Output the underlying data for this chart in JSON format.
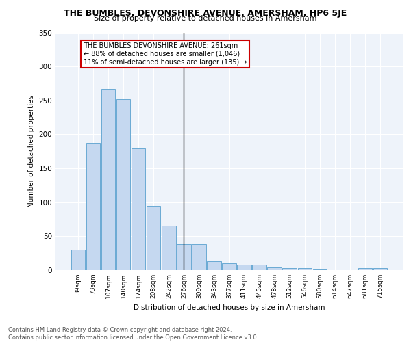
{
  "title": "THE BUMBLES, DEVONSHIRE AVENUE, AMERSHAM, HP6 5JE",
  "subtitle": "Size of property relative to detached houses in Amersham",
  "xlabel": "Distribution of detached houses by size in Amersham",
  "ylabel": "Number of detached properties",
  "categories": [
    "39sqm",
    "73sqm",
    "107sqm",
    "140sqm",
    "174sqm",
    "208sqm",
    "242sqm",
    "276sqm",
    "309sqm",
    "343sqm",
    "377sqm",
    "411sqm",
    "445sqm",
    "478sqm",
    "512sqm",
    "546sqm",
    "580sqm",
    "614sqm",
    "647sqm",
    "681sqm",
    "715sqm"
  ],
  "values": [
    30,
    187,
    267,
    252,
    179,
    95,
    65,
    38,
    38,
    13,
    10,
    8,
    8,
    4,
    3,
    3,
    1,
    0,
    0,
    3,
    3
  ],
  "bar_color": "#c5d8f0",
  "bar_edge_color": "#6aaad4",
  "vline_x": 7,
  "annotation_text": "THE BUMBLES DEVONSHIRE AVENUE: 261sqm\n← 88% of detached houses are smaller (1,046)\n11% of semi-detached houses are larger (135) →",
  "annotation_box_color": "#ffffff",
  "annotation_border_color": "#cc0000",
  "footer_text": "Contains HM Land Registry data © Crown copyright and database right 2024.\nContains public sector information licensed under the Open Government Licence v3.0.",
  "background_color": "#eef3fa",
  "ylim": [
    0,
    350
  ],
  "yticks": [
    0,
    50,
    100,
    150,
    200,
    250,
    300,
    350
  ]
}
